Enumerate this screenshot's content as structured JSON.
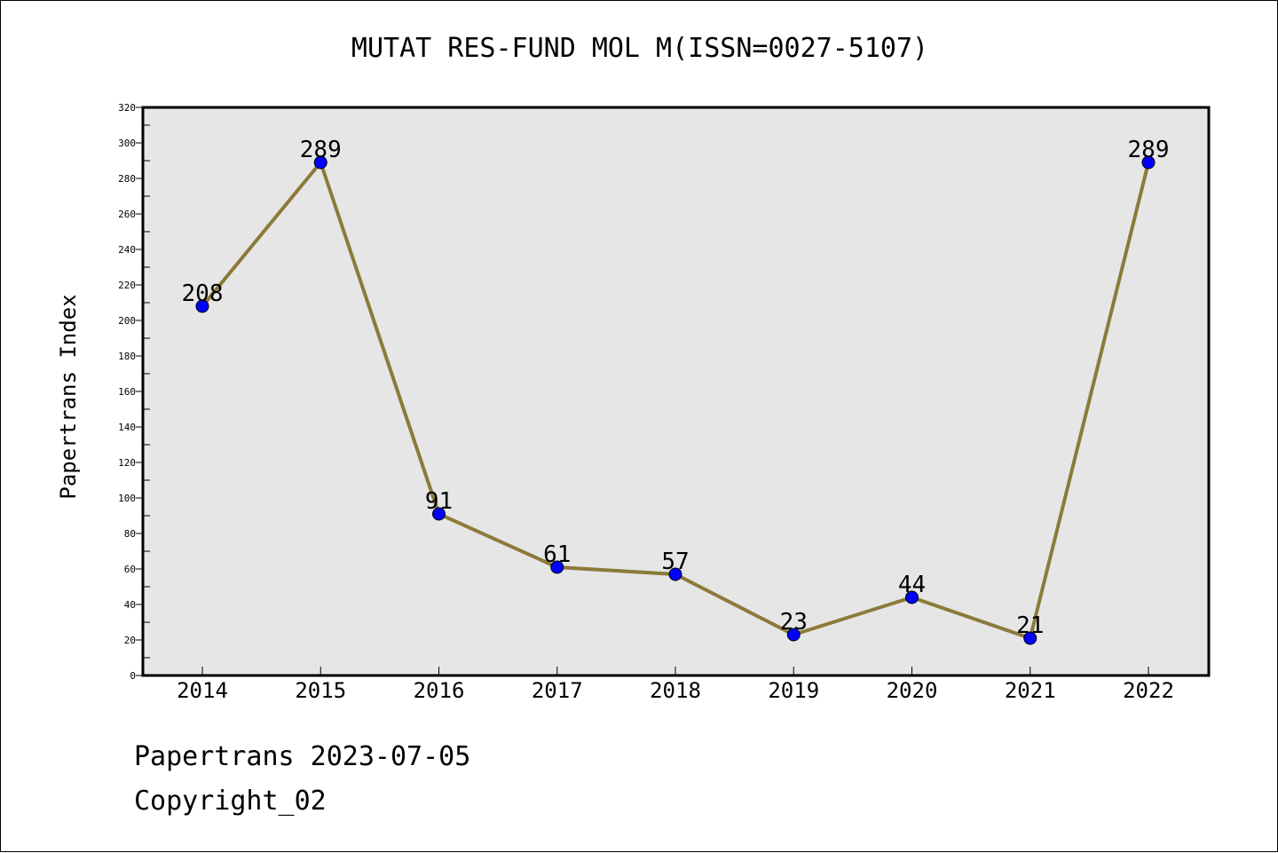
{
  "chart_data": {
    "type": "line",
    "title": "MUTAT RES-FUND MOL M(ISSN=0027-5107)",
    "xlabel": "",
    "ylabel": "Papertrans Index",
    "categories": [
      "2014",
      "2015",
      "2016",
      "2017",
      "2018",
      "2019",
      "2020",
      "2021",
      "2022"
    ],
    "series": [
      {
        "values": [
          208,
          289,
          91,
          61,
          57,
          23,
          44,
          21,
          289
        ]
      }
    ],
    "data_labels": [
      "208",
      "289",
      "91",
      "61",
      "57",
      "23",
      "44",
      "21",
      "289"
    ],
    "ylim": [
      0,
      320
    ],
    "yticks": [
      "0",
      "20",
      "40",
      "60",
      "80",
      "100",
      "120",
      "140",
      "160",
      "180",
      "200",
      "220",
      "240",
      "260",
      "280",
      "300",
      "320"
    ],
    "grid": false,
    "legend": "none",
    "colors": {
      "line": "#8c7a3a",
      "marker": "#0000ff",
      "plot_bg": "#e6e6e6"
    }
  },
  "footer": {
    "line1": "Papertrans 2023-07-05",
    "line2": "Copyright_02"
  }
}
